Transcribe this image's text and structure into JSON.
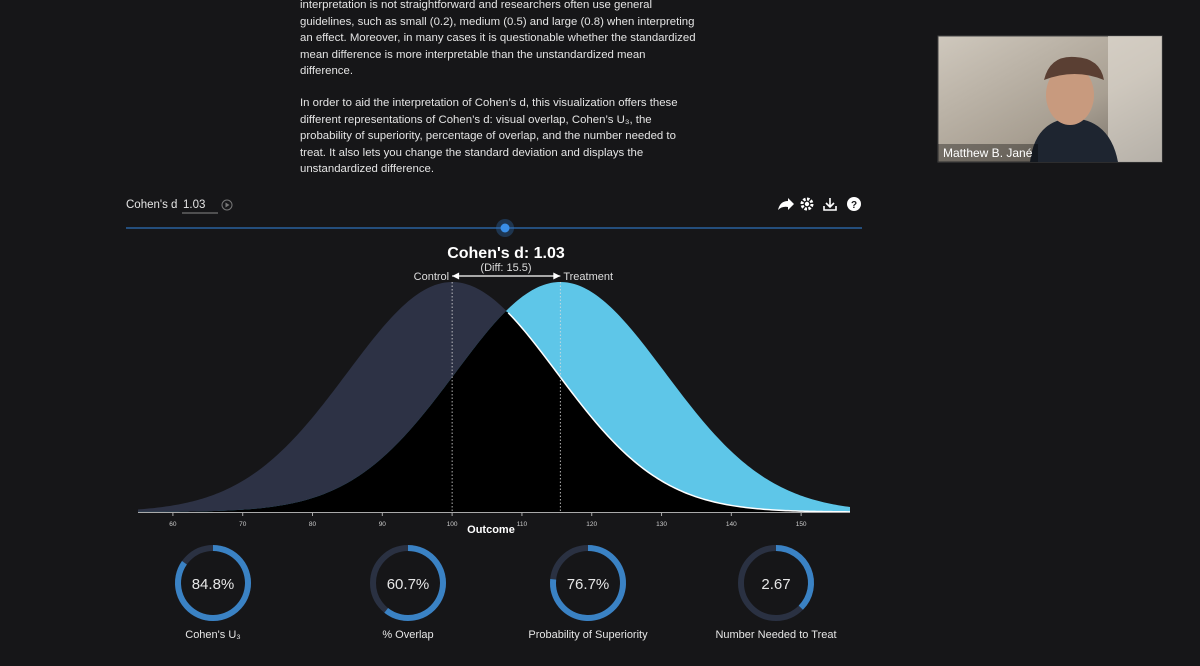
{
  "article": {
    "paragraphs": [
      "interpretation is not straightforward and researchers often use general guidelines, such as small (0.2), medium (0.5) and large (0.8) when interpreting an effect. Moreover, in many cases it is questionable whether the standardized mean difference is more interpretable than the unstandardized mean difference.",
      "In order to aid the interpretation of Cohen’s d, this visualization offers these different representations of Cohen’s d: visual overlap, Cohen’s U₃, the probability of superiority, percentage of overlap, and the number needed to treat. It also lets you change the standard deviation and displays the unstandardized difference."
    ]
  },
  "slider": {
    "label": "Cohen's d",
    "value": 1.03,
    "range": [
      0,
      2
    ]
  },
  "chart_data": {
    "type": "normal_overlap",
    "title": "Cohen's d: 1.03",
    "subtitle": "(Diff: 15.5)",
    "x_label": "Outcome",
    "series": [
      {
        "name": "Control",
        "mean": 100,
        "sd": 15,
        "color": "#2d3245"
      },
      {
        "name": "Treatment",
        "mean": 115.5,
        "sd": 15,
        "color": "#5ec6e8"
      }
    ],
    "overlap_color": "#000000",
    "xlim": [
      55,
      157
    ],
    "xticks": [
      60,
      70,
      80,
      90,
      100,
      110,
      120,
      130,
      140,
      150
    ]
  },
  "gauges": [
    {
      "label": "Cohen's U₃",
      "value": 84.8,
      "value_label": "84.8%"
    },
    {
      "label": "% Overlap",
      "value": 60.7,
      "value_label": "60.7%"
    },
    {
      "label": "Probability of Superiority",
      "value": 76.7,
      "value_label": "76.7%"
    },
    {
      "label": "Number Needed to Treat",
      "value": 2.67,
      "value_label": "2.67"
    }
  ],
  "webcam": {
    "name": "Matthew B. Jané"
  }
}
